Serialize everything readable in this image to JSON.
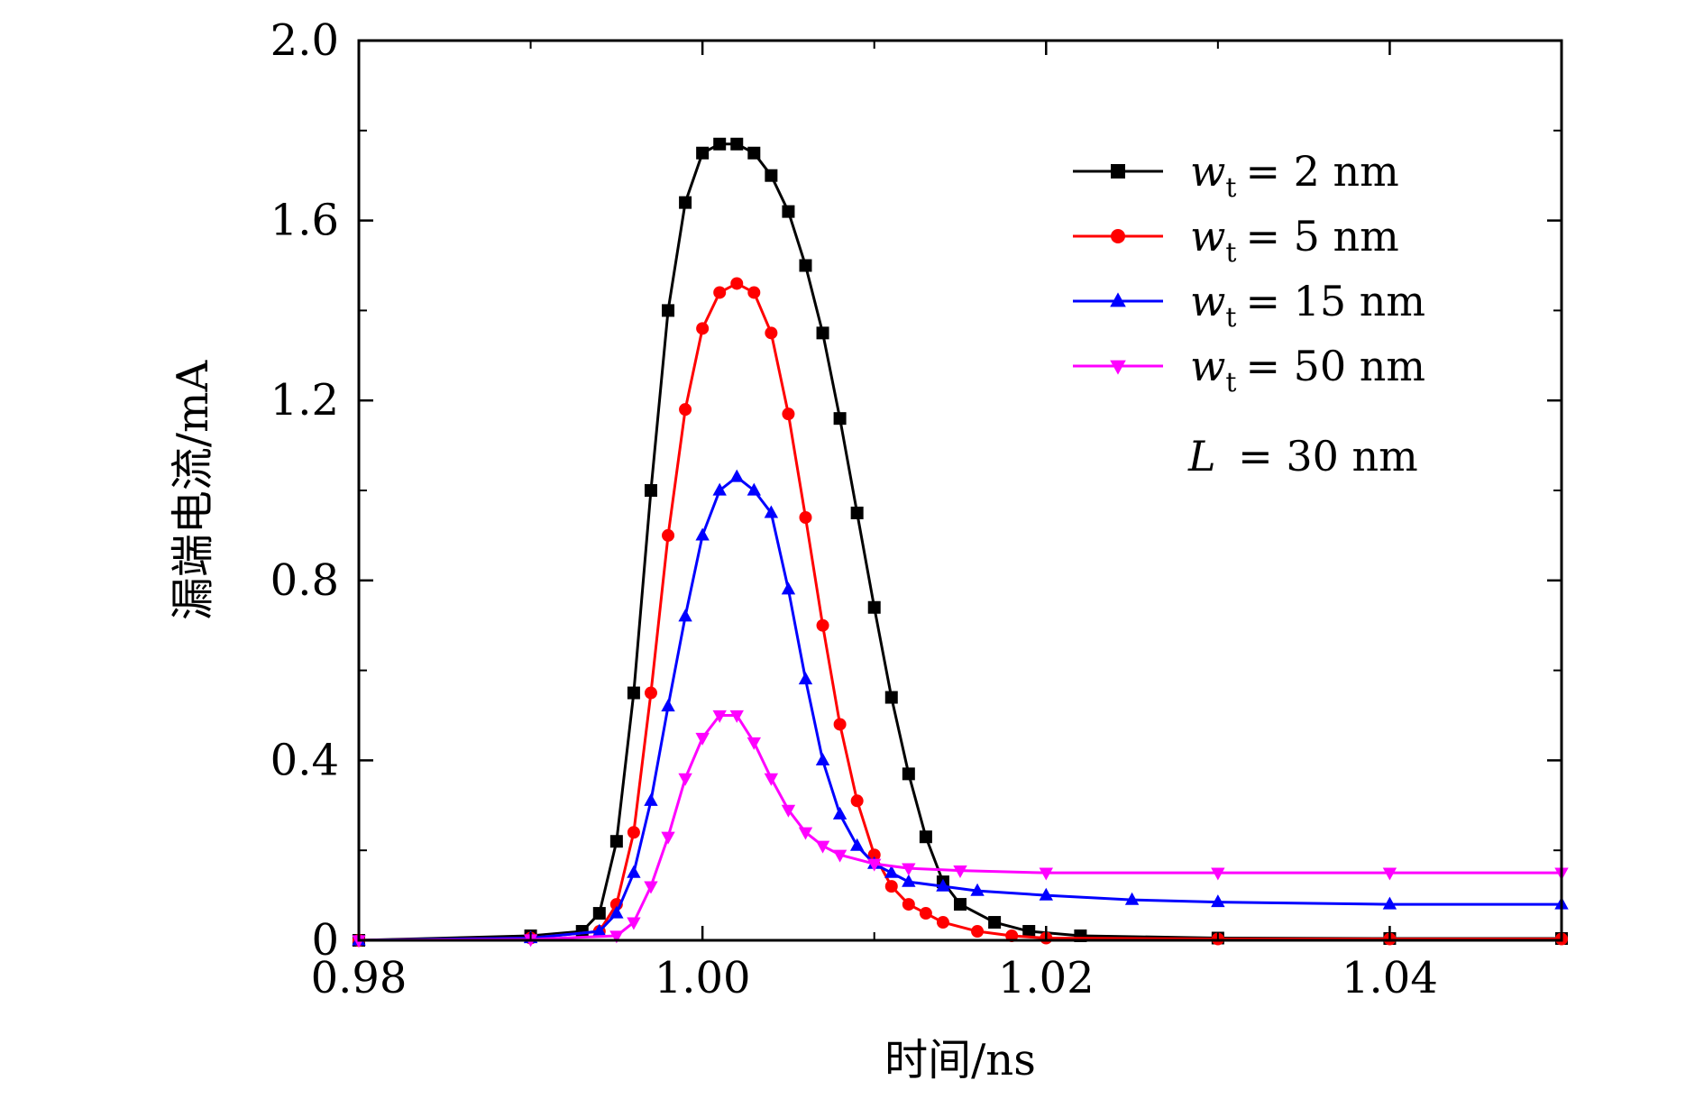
{
  "chart_data": {
    "type": "line",
    "title": "",
    "xlabel": "时间/ns",
    "ylabel": "漏端电流/mA",
    "xlim": [
      0.98,
      1.05
    ],
    "ylim": [
      0,
      2.0
    ],
    "grid": false,
    "legend_position": "top-right",
    "x_ticks": [
      0.98,
      1.0,
      1.02,
      1.04
    ],
    "x_tick_labels": [
      "0.98",
      "1.00",
      "1.02",
      "1.04"
    ],
    "y_ticks": [
      0,
      0.4,
      0.8,
      1.2,
      1.6,
      2.0
    ],
    "y_tick_labels": [
      "0",
      "0.4",
      "0.8",
      "1.2",
      "1.6",
      "2.0"
    ],
    "annotation": {
      "var": "L",
      "text": "= 30  nm"
    },
    "series": [
      {
        "name": "wt = 2 nm",
        "legend_var": "w",
        "legend_sub": "t",
        "legend_rest": "= 2  nm",
        "color": "#000000",
        "marker": "square",
        "x": [
          0.98,
          0.99,
          0.993,
          0.994,
          0.995,
          0.996,
          0.997,
          0.998,
          0.999,
          1.0,
          1.001,
          1.002,
          1.003,
          1.004,
          1.005,
          1.006,
          1.007,
          1.008,
          1.009,
          1.01,
          1.011,
          1.012,
          1.013,
          1.014,
          1.015,
          1.017,
          1.019,
          1.022,
          1.03,
          1.04,
          1.05
        ],
        "y": [
          0.0,
          0.01,
          0.02,
          0.06,
          0.22,
          0.55,
          1.0,
          1.4,
          1.64,
          1.75,
          1.77,
          1.77,
          1.75,
          1.7,
          1.62,
          1.5,
          1.35,
          1.16,
          0.95,
          0.74,
          0.54,
          0.37,
          0.23,
          0.13,
          0.08,
          0.04,
          0.02,
          0.01,
          0.005,
          0.004,
          0.004
        ]
      },
      {
        "name": "wt = 5 nm",
        "legend_var": "w",
        "legend_sub": "t",
        "legend_rest": "= 5  nm",
        "color": "#ff0000",
        "marker": "circle",
        "x": [
          0.98,
          0.99,
          0.994,
          0.995,
          0.996,
          0.997,
          0.998,
          0.999,
          1.0,
          1.001,
          1.002,
          1.003,
          1.004,
          1.005,
          1.006,
          1.007,
          1.008,
          1.009,
          1.01,
          1.011,
          1.012,
          1.013,
          1.014,
          1.016,
          1.018,
          1.02,
          1.03,
          1.04,
          1.05
        ],
        "y": [
          0.0,
          0.005,
          0.02,
          0.08,
          0.24,
          0.55,
          0.9,
          1.18,
          1.36,
          1.44,
          1.46,
          1.44,
          1.35,
          1.17,
          0.94,
          0.7,
          0.48,
          0.31,
          0.19,
          0.12,
          0.08,
          0.06,
          0.04,
          0.02,
          0.01,
          0.005,
          0.003,
          0.003,
          0.003
        ]
      },
      {
        "name": "wt = 15 nm",
        "legend_var": "w",
        "legend_sub": "t",
        "legend_rest": "= 15  nm",
        "color": "#0000ff",
        "marker": "triangle-up",
        "x": [
          0.98,
          0.99,
          0.994,
          0.995,
          0.996,
          0.997,
          0.998,
          0.999,
          1.0,
          1.001,
          1.002,
          1.003,
          1.004,
          1.005,
          1.006,
          1.007,
          1.008,
          1.009,
          1.01,
          1.011,
          1.012,
          1.014,
          1.016,
          1.02,
          1.025,
          1.03,
          1.04,
          1.05
        ],
        "y": [
          0.0,
          0.005,
          0.02,
          0.06,
          0.15,
          0.31,
          0.52,
          0.72,
          0.9,
          1.0,
          1.03,
          1.0,
          0.95,
          0.78,
          0.58,
          0.4,
          0.28,
          0.21,
          0.17,
          0.15,
          0.13,
          0.12,
          0.11,
          0.1,
          0.09,
          0.085,
          0.08,
          0.08
        ]
      },
      {
        "name": "wt = 50 nm",
        "legend_var": "w",
        "legend_sub": "t",
        "legend_rest": "= 50  nm",
        "color": "#ff00ff",
        "marker": "triangle-down",
        "x": [
          0.98,
          0.99,
          0.995,
          0.996,
          0.997,
          0.998,
          0.999,
          1.0,
          1.001,
          1.002,
          1.003,
          1.004,
          1.005,
          1.006,
          1.007,
          1.008,
          1.01,
          1.012,
          1.015,
          1.02,
          1.03,
          1.04,
          1.05
        ],
        "y": [
          0.0,
          0.002,
          0.01,
          0.04,
          0.12,
          0.23,
          0.36,
          0.45,
          0.5,
          0.5,
          0.44,
          0.36,
          0.29,
          0.24,
          0.21,
          0.19,
          0.17,
          0.16,
          0.155,
          0.15,
          0.15,
          0.15,
          0.15
        ]
      }
    ]
  }
}
